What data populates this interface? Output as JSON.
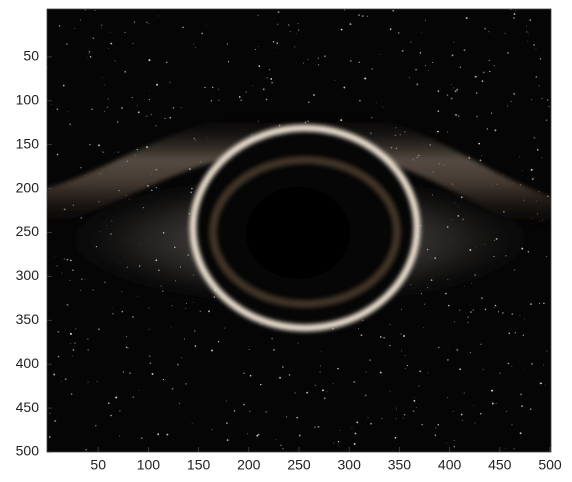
{
  "chart_data": {
    "type": "image",
    "xlim": [
      0,
      500
    ],
    "ylim": [
      0,
      500
    ],
    "y_reversed": true,
    "xticks": [
      50,
      100,
      150,
      200,
      250,
      300,
      350,
      400,
      450,
      500
    ],
    "yticks": [
      50,
      100,
      150,
      200,
      250,
      300,
      350,
      400,
      450,
      500
    ]
  }
}
